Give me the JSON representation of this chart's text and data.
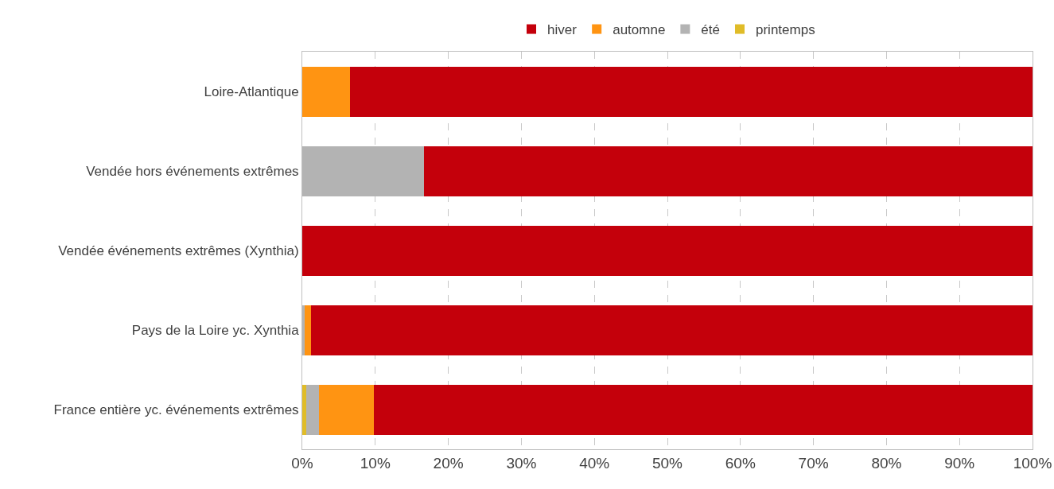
{
  "chart_data": {
    "type": "bar",
    "orientation": "horizontal",
    "stacked": true,
    "categories": [
      "Loire-Atlantique",
      "Vendée hors événements extrêmes",
      "Vendée événements extrêmes (Xynthia)",
      "Pays de la Loire yc. Xynthia",
      "France entière yc. événements extrêmes"
    ],
    "series": [
      {
        "name": "printemps",
        "color": "#e0bc28",
        "values": [
          0,
          0,
          0,
          0,
          0.5
        ]
      },
      {
        "name": "été",
        "color": "#b3b3b3",
        "values": [
          0,
          16.7,
          0,
          0.3,
          1.8
        ]
      },
      {
        "name": "automne",
        "color": "#ff9412",
        "values": [
          6.5,
          0,
          0,
          0.9,
          7.5
        ]
      },
      {
        "name": "hiver",
        "color": "#c4000b",
        "values": [
          93.5,
          83.3,
          100,
          98.8,
          90.2
        ]
      }
    ],
    "xlim": [
      0,
      100
    ],
    "xticks": [
      {
        "value": 0,
        "label": "0%"
      },
      {
        "value": 10,
        "label": "10%"
      },
      {
        "value": 20,
        "label": "20%"
      },
      {
        "value": 30,
        "label": "30%"
      },
      {
        "value": 40,
        "label": "40%"
      },
      {
        "value": 50,
        "label": "50%"
      },
      {
        "value": 60,
        "label": "60%"
      },
      {
        "value": 70,
        "label": "70%"
      },
      {
        "value": 80,
        "label": "80%"
      },
      {
        "value": 90,
        "label": "90%"
      },
      {
        "value": 100,
        "label": "100%"
      }
    ],
    "grid": "x",
    "legend": "top"
  }
}
